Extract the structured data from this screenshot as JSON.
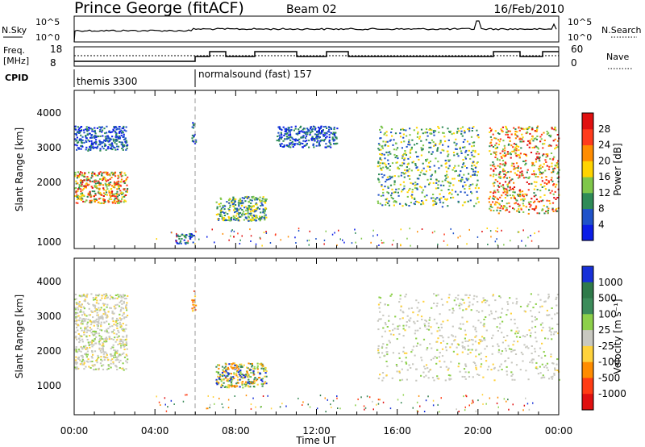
{
  "header": {
    "station": "Prince George (fitACF)",
    "beam": "Beam 02",
    "date": "16/Feb/2010"
  },
  "top_panels": {
    "nsky_label": "N.Sky",
    "nsearch_label": "N.Search",
    "log_ticks": [
      "10^5",
      "10^0"
    ],
    "freq_label_1": "Freq.",
    "freq_label_2": "[MHz]",
    "freq_ticks": [
      "18",
      "8"
    ],
    "nave_label": "Nave",
    "nave_ticks": [
      "60",
      "0"
    ],
    "cpid_label": "CPID",
    "cpid_segments": [
      {
        "name": "themis 3300",
        "start_hour": 0,
        "end_hour": 6
      },
      {
        "name": "normalsound (fast) 157",
        "start_hour": 6,
        "end_hour": 24
      }
    ],
    "colors": {
      "trace": "#000000"
    }
  },
  "chart_data": [
    {
      "type": "heatmap",
      "panel": "power",
      "ylabel": "Slant Range [km]",
      "yticks": [
        "1000",
        "2000",
        "3000",
        "4000"
      ],
      "ylim": [
        0,
        4500
      ],
      "xlim_hours": [
        0,
        24
      ],
      "colorbar_label": "Power [dB]",
      "colorbar_ticks": [
        "4",
        "8",
        "12",
        "16",
        "20",
        "24",
        "28"
      ],
      "colorbar_colors": [
        "#0b1de6",
        "#1f52c9",
        "#2e8b57",
        "#7fc74a",
        "#ffd400",
        "#ff8c00",
        "#ff3b1c",
        "#e01010"
      ],
      "regions": [
        {
          "x": [
            0.0,
            2.6
          ],
          "y": [
            2800,
            3500
          ],
          "level": "low"
        },
        {
          "x": [
            0.0,
            2.6
          ],
          "y": [
            1300,
            2200
          ],
          "level": "high"
        },
        {
          "x": [
            5.8,
            6.0
          ],
          "y": [
            3000,
            3600
          ],
          "level": "low"
        },
        {
          "x": [
            7.0,
            9.5
          ],
          "y": [
            800,
            1500
          ],
          "level": "mid"
        },
        {
          "x": [
            5.0,
            5.9
          ],
          "y": [
            150,
            450
          ],
          "level": "low"
        },
        {
          "x": [
            10.0,
            13.0
          ],
          "y": [
            2900,
            3500
          ],
          "level": "low"
        },
        {
          "x": [
            15.0,
            20.0
          ],
          "y": [
            1200,
            3500
          ],
          "level": "mid"
        },
        {
          "x": [
            20.5,
            24.0
          ],
          "y": [
            1000,
            3500
          ],
          "level": "high"
        }
      ]
    },
    {
      "type": "heatmap",
      "panel": "velocity",
      "ylabel": "Slant Range [km]",
      "yticks": [
        "1000",
        "2000",
        "3000",
        "4000"
      ],
      "ylim": [
        0,
        4500
      ],
      "xlim_hours": [
        0,
        24
      ],
      "xticks": [
        "00:00",
        "04:00",
        "08:00",
        "12:00",
        "16:00",
        "20:00",
        "00:00"
      ],
      "xlabel": "Time UT",
      "colorbar_label": "Velocity [m s⁻¹]",
      "colorbar_ticks": [
        "1000",
        "500",
        "100",
        "25",
        "-25",
        "-100",
        "-500",
        "-1000"
      ],
      "colorbar_colors": [
        "#1730d8",
        "#2f7a4a",
        "#3c8c5a",
        "#8dd04a",
        "#c8c8c0",
        "#ffd23c",
        "#ff8c00",
        "#ff3c14",
        "#e01010"
      ],
      "regions": [
        {
          "x": [
            0.0,
            2.6
          ],
          "y": [
            1300,
            3500
          ],
          "level": "ground"
        },
        {
          "x": [
            5.8,
            6.0
          ],
          "y": [
            3000,
            3600
          ],
          "level": "negative"
        },
        {
          "x": [
            7.0,
            9.5
          ],
          "y": [
            800,
            1500
          ],
          "level": "mixed"
        },
        {
          "x": [
            15.0,
            24.0
          ],
          "y": [
            1000,
            3500
          ],
          "level": "ground"
        }
      ]
    }
  ]
}
